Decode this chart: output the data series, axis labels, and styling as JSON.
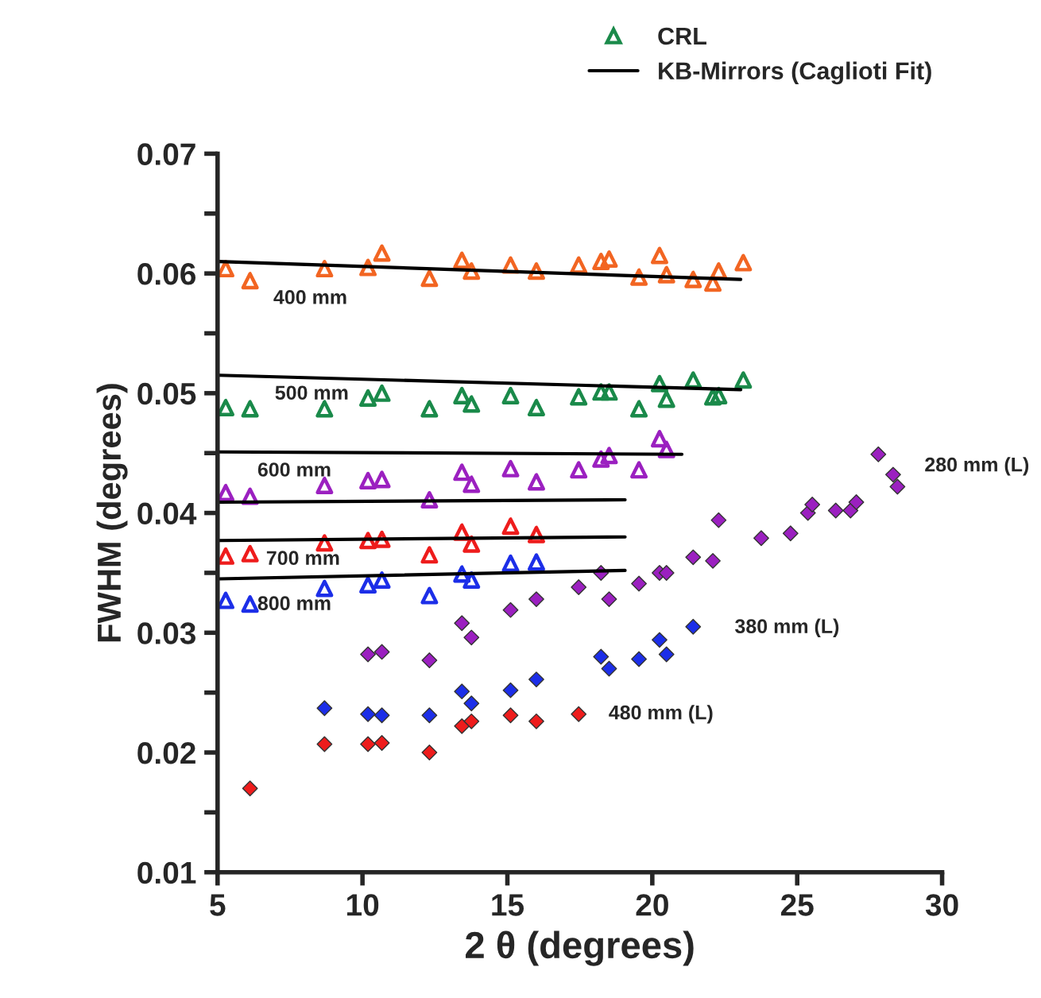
{
  "chart_data": {
    "type": "scatter",
    "xlabel": "2 θ (degrees)",
    "ylabel": "FWHM (degrees)",
    "xlim": [
      5,
      30
    ],
    "xticks": [
      5,
      10,
      15,
      20,
      25,
      30
    ],
    "ylim": [
      0.01,
      0.07
    ],
    "yticks": [
      0.01,
      {
        "value": 0.015,
        "label": null
      },
      0.02,
      {
        "value": 0.025,
        "label": null
      },
      0.03,
      {
        "value": 0.035,
        "label": null
      },
      0.04,
      {
        "value": 0.045,
        "label": null
      },
      0.05,
      {
        "value": 0.055,
        "label": null
      },
      0.06,
      {
        "value": 0.065,
        "label": null
      },
      0.07
    ],
    "grid": false,
    "legend": "top right",
    "series": [
      {
        "marker": "triangle",
        "color": "#f26522",
        "x": [
          5.28,
          6.12,
          8.69,
          10.19,
          10.67,
          12.31,
          13.43,
          13.76,
          15.11,
          16.0,
          17.46,
          18.23,
          18.51,
          19.54,
          20.25,
          20.49,
          21.41,
          22.09,
          22.29,
          23.14
        ],
        "values": [
          0.0604,
          0.0594,
          0.0604,
          0.0605,
          0.0617,
          0.0596,
          0.0611,
          0.0602,
          0.0607,
          0.0602,
          0.0607,
          0.061,
          0.0612,
          0.0597,
          0.0615,
          0.0599,
          0.0595,
          0.0592,
          0.0602,
          0.0609
        ]
      },
      {
        "marker": "triangle",
        "name": "CRL",
        "color": "#1a8a4a",
        "x": [
          5.28,
          6.12,
          8.69,
          10.19,
          10.67,
          12.31,
          13.43,
          13.76,
          15.11,
          16.0,
          17.46,
          18.23,
          18.51,
          19.54,
          20.25,
          20.49,
          21.41,
          22.09,
          22.29,
          23.14
        ],
        "values": [
          0.0488,
          0.0487,
          0.0487,
          0.0496,
          0.05,
          0.0487,
          0.0498,
          0.0491,
          0.0498,
          0.0488,
          0.0497,
          0.0501,
          0.0501,
          0.0487,
          0.0508,
          0.0495,
          0.0511,
          0.0497,
          0.0498,
          0.0511
        ]
      },
      {
        "marker": "triangle",
        "color": "#9b20c0",
        "x": [
          5.28,
          6.12,
          8.69,
          10.19,
          10.67,
          12.31,
          13.43,
          13.76,
          15.11,
          16.0,
          17.46,
          18.23,
          18.51,
          19.54,
          20.25,
          20.49
        ],
        "values": [
          0.0417,
          0.0414,
          0.0423,
          0.0427,
          0.0428,
          0.0411,
          0.0434,
          0.0424,
          0.0437,
          0.0426,
          0.0436,
          0.0445,
          0.0448,
          0.0436,
          0.0462,
          0.0453
        ]
      },
      {
        "marker": "triangle",
        "color": "#ee1c1c",
        "x": [
          5.28,
          6.12,
          8.69,
          10.19,
          10.67,
          12.31,
          13.43,
          13.76,
          15.11,
          16.0
        ],
        "values": [
          0.0364,
          0.0366,
          0.0375,
          0.0377,
          0.0378,
          0.0365,
          0.0384,
          0.0374,
          0.0389,
          0.0382
        ]
      },
      {
        "marker": "triangle",
        "color": "#1c2ee8",
        "x": [
          5.28,
          6.12,
          8.69,
          10.19,
          10.67,
          12.31,
          13.43,
          13.76,
          15.11,
          16.0
        ],
        "values": [
          0.0327,
          0.0324,
          0.0337,
          0.034,
          0.0344,
          0.0331,
          0.0349,
          0.0344,
          0.0358,
          0.0359
        ]
      },
      {
        "type": "line",
        "marker": "none",
        "name": "KB-Mirrors (Caglioti Fit)",
        "color": "#000000",
        "x": [
          5.05,
          23.05
        ],
        "values": [
          0.061,
          0.0595
        ]
      },
      {
        "type": "line",
        "marker": "none",
        "color": "#000000",
        "x": [
          5.05,
          23.05
        ],
        "values": [
          0.0515,
          0.0503
        ]
      },
      {
        "type": "line",
        "marker": "none",
        "color": "#000000",
        "x": [
          5.05,
          21.02
        ],
        "values": [
          0.0451,
          0.0449
        ]
      },
      {
        "type": "line",
        "marker": "none",
        "color": "#000000",
        "x": [
          5.05,
          19.06
        ],
        "values": [
          0.0409,
          0.0411
        ]
      },
      {
        "type": "line",
        "marker": "none",
        "color": "#000000",
        "x": [
          5.05,
          19.06
        ],
        "values": [
          0.0377,
          0.038
        ]
      },
      {
        "type": "line",
        "marker": "none",
        "color": "#000000",
        "x": [
          5.05,
          19.06
        ],
        "values": [
          0.0345,
          0.0352
        ]
      },
      {
        "marker": "diamond",
        "color": "#9b20c0",
        "x": [
          10.19,
          10.67,
          12.31,
          13.43,
          13.76,
          15.11,
          16.0,
          17.46,
          18.23,
          18.51,
          19.54,
          20.25,
          20.49,
          21.41,
          22.09,
          22.29,
          23.76,
          24.77,
          25.37,
          25.52,
          26.33,
          26.84,
          27.04,
          27.8,
          28.31,
          28.46
        ],
        "values": [
          0.0282,
          0.0284,
          0.0277,
          0.0308,
          0.0296,
          0.0319,
          0.0328,
          0.0338,
          0.035,
          0.0328,
          0.0341,
          0.035,
          0.035,
          0.0363,
          0.036,
          0.0394,
          0.0379,
          0.0383,
          0.04,
          0.0407,
          0.0402,
          0.0402,
          0.0409,
          0.0449,
          0.0432,
          0.0422
        ]
      },
      {
        "marker": "diamond",
        "color": "#1c2ee8",
        "x": [
          8.69,
          10.19,
          10.67,
          12.31,
          13.43,
          13.76,
          15.11,
          16.0,
          18.23,
          18.51,
          19.54,
          20.25,
          20.49,
          21.41
        ],
        "values": [
          0.0237,
          0.0232,
          0.0231,
          0.0231,
          0.0251,
          0.0241,
          0.0252,
          0.0261,
          0.028,
          0.027,
          0.0278,
          0.0294,
          0.0282,
          0.0305
        ]
      },
      {
        "marker": "diamond",
        "color": "#ee1c1c",
        "x": [
          6.12,
          8.69,
          10.19,
          10.67,
          12.31,
          13.43,
          13.76,
          15.11,
          16.0,
          17.46
        ],
        "values": [
          0.017,
          0.0207,
          0.0207,
          0.0208,
          0.02,
          0.0222,
          0.0226,
          0.0231,
          0.0226,
          0.0232
        ]
      }
    ],
    "annotations": [
      "400 mm",
      "500 mm",
      "600 mm",
      "700 mm",
      "800 mm",
      "280 mm (L)",
      "380 mm (L)",
      "480 mm (L)"
    ]
  }
}
